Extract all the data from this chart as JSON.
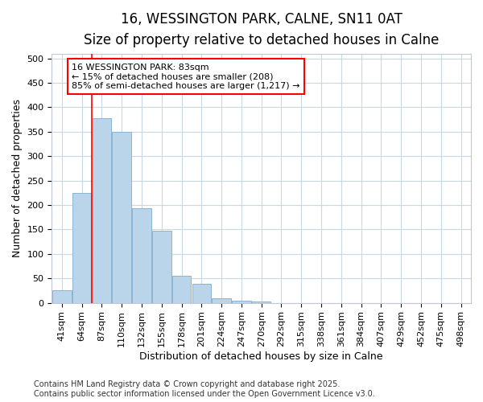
{
  "title_line1": "16, WESSINGTON PARK, CALNE, SN11 0AT",
  "title_line2": "Size of property relative to detached houses in Calne",
  "xlabel": "Distribution of detached houses by size in Calne",
  "ylabel": "Number of detached properties",
  "categories": [
    "41sqm",
    "64sqm",
    "87sqm",
    "110sqm",
    "132sqm",
    "155sqm",
    "178sqm",
    "201sqm",
    "224sqm",
    "247sqm",
    "270sqm",
    "292sqm",
    "315sqm",
    "338sqm",
    "361sqm",
    "384sqm",
    "407sqm",
    "429sqm",
    "452sqm",
    "475sqm",
    "498sqm"
  ],
  "values": [
    25,
    225,
    378,
    350,
    193,
    147,
    55,
    38,
    10,
    5,
    2,
    0,
    0,
    0,
    0,
    0,
    0,
    0,
    0,
    0,
    0
  ],
  "bar_color": "#bad4ea",
  "bar_edge_color": "#8ab4d4",
  "ylim": [
    0,
    510
  ],
  "yticks": [
    0,
    50,
    100,
    150,
    200,
    250,
    300,
    350,
    400,
    450,
    500
  ],
  "red_line_x": 2,
  "annotation_text": "16 WESSINGTON PARK: 83sqm\n← 15% of detached houses are smaller (208)\n85% of semi-detached houses are larger (1,217) →",
  "footer_line1": "Contains HM Land Registry data © Crown copyright and database right 2025.",
  "footer_line2": "Contains public sector information licensed under the Open Government Licence v3.0.",
  "background_color": "#ffffff",
  "plot_background_color": "#ffffff",
  "grid_color": "#c8d8e8",
  "title_fontsize": 12,
  "subtitle_fontsize": 10,
  "axis_label_fontsize": 9,
  "tick_fontsize": 8,
  "annotation_fontsize": 8,
  "footer_fontsize": 7
}
